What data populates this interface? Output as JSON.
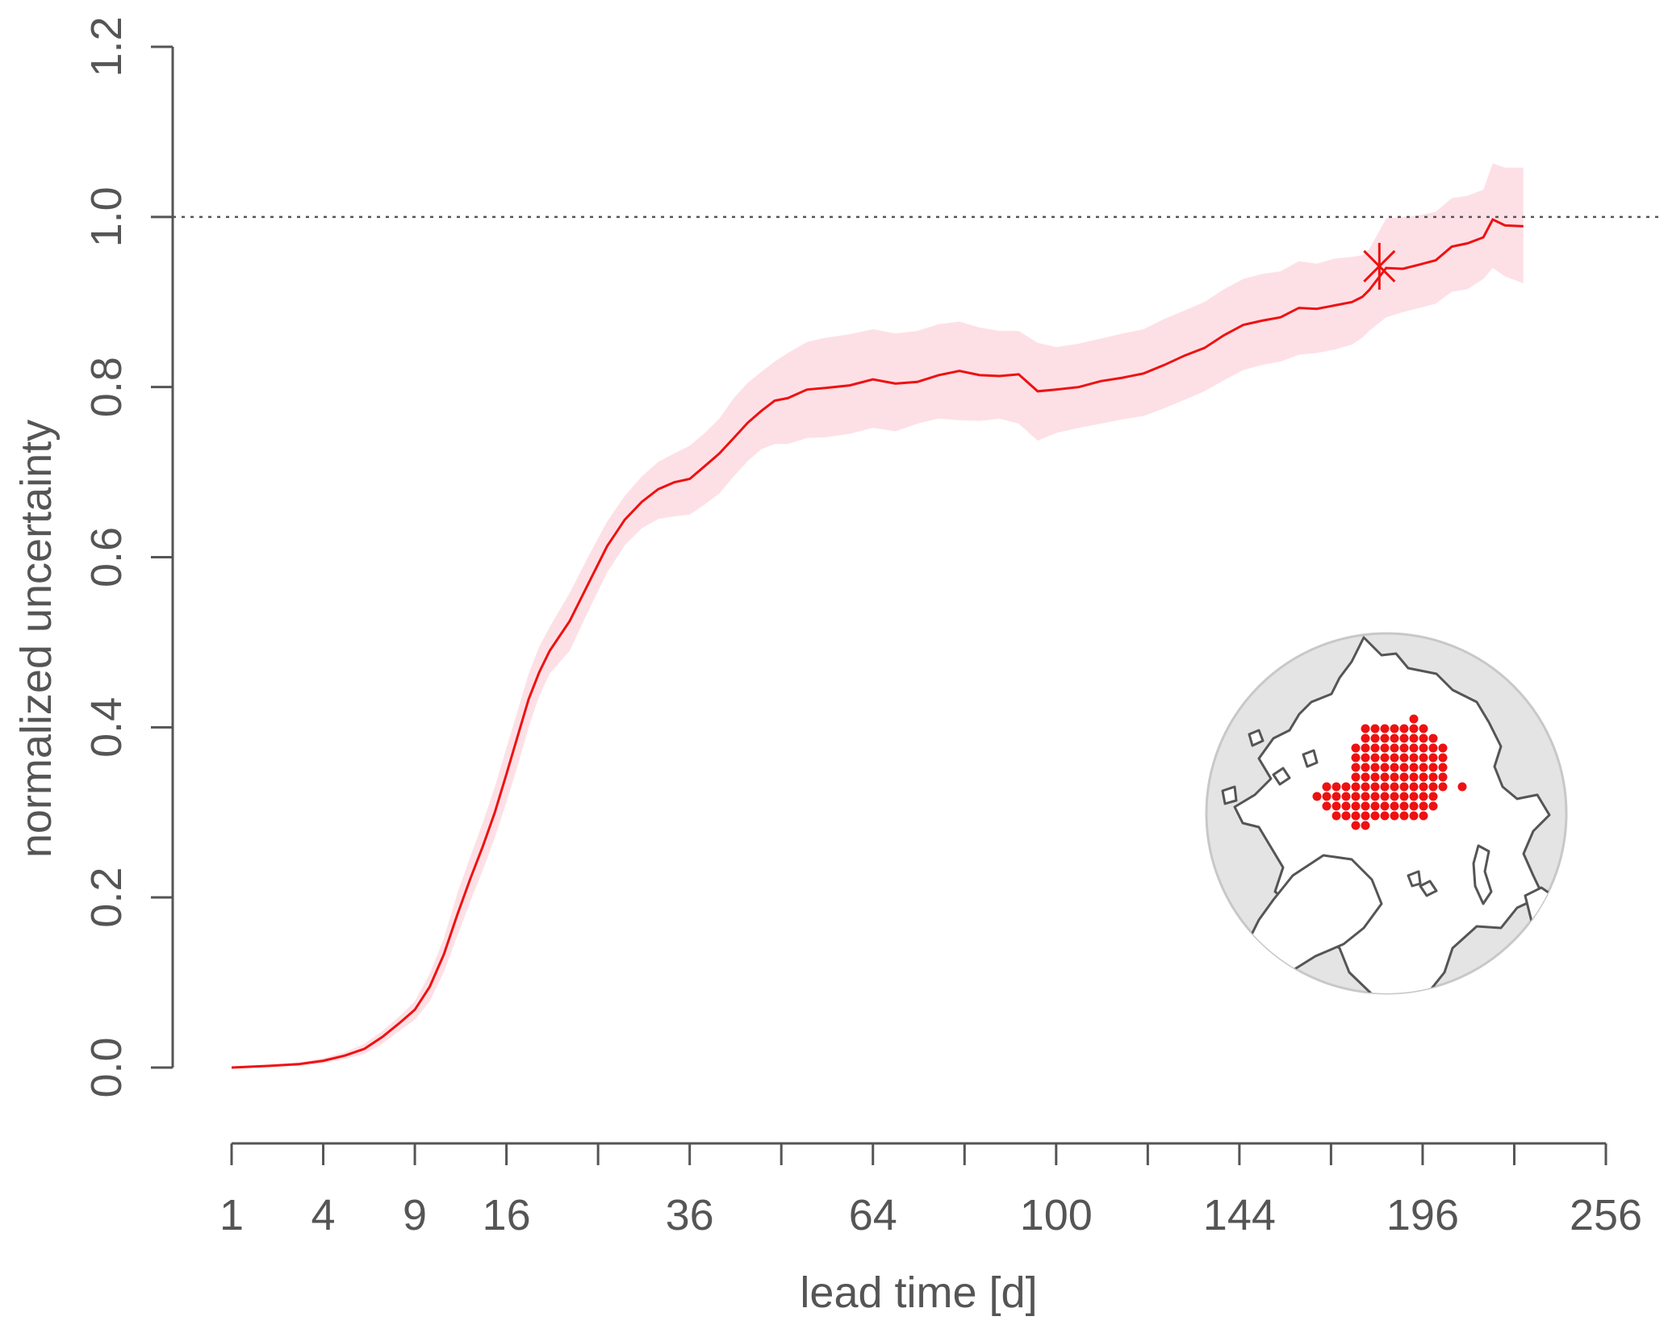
{
  "chart_data": {
    "type": "line",
    "title": "",
    "xlabel": "lead time [d]",
    "ylabel": "normalized uncertainty",
    "x_scale": "sqrt",
    "xlim": [
      1,
      256
    ],
    "ylim": [
      0,
      1.2
    ],
    "x_ticks": [
      1,
      4,
      9,
      16,
      36,
      64,
      100,
      144,
      196,
      256
    ],
    "x_minor_ticks": [
      25,
      49,
      81,
      121,
      169,
      225
    ],
    "y_ticks": [
      "0.0",
      "0.2",
      "0.4",
      "0.6",
      "0.8",
      "1.0",
      "1.2"
    ],
    "reference_line": {
      "y": 1.0,
      "style": "dotted"
    },
    "grid": false,
    "legend": "none",
    "series": [
      {
        "color": "#ee1111",
        "band_color": "#fde0e6",
        "x": [
          1,
          2,
          3,
          4,
          5,
          6,
          7,
          8,
          9,
          10,
          11,
          12,
          13,
          14,
          15,
          16,
          17,
          18,
          19,
          20,
          22,
          24,
          26,
          28,
          30,
          32,
          34,
          36,
          38,
          40,
          42,
          44,
          46,
          48,
          50,
          53,
          56,
          60,
          64,
          68,
          72,
          76,
          80,
          84,
          88,
          92,
          96,
          100,
          105,
          110,
          115,
          120,
          125,
          130,
          135,
          140,
          145,
          150,
          155,
          160,
          165,
          170,
          175,
          178,
          180,
          185,
          190,
          195,
          200,
          205,
          210,
          215,
          218,
          222,
          228
        ],
        "y": [
          0.0,
          0.002,
          0.004,
          0.008,
          0.014,
          0.022,
          0.036,
          0.052,
          0.068,
          0.095,
          0.133,
          0.18,
          0.222,
          0.26,
          0.3,
          0.345,
          0.39,
          0.433,
          0.465,
          0.49,
          0.525,
          0.57,
          0.613,
          0.644,
          0.665,
          0.68,
          0.688,
          0.692,
          0.707,
          0.722,
          0.74,
          0.758,
          0.772,
          0.784,
          0.787,
          0.797,
          0.799,
          0.802,
          0.809,
          0.804,
          0.806,
          0.814,
          0.819,
          0.814,
          0.813,
          0.815,
          0.795,
          0.797,
          0.8,
          0.807,
          0.811,
          0.816,
          0.826,
          0.837,
          0.846,
          0.861,
          0.873,
          0.878,
          0.882,
          0.893,
          0.892,
          0.896,
          0.9,
          0.906,
          0.914,
          0.94,
          0.939,
          0.944,
          0.949,
          0.965,
          0.969,
          0.976,
          0.997,
          0.99,
          0.989
        ],
        "lower": [
          0.0,
          0.001,
          0.002,
          0.005,
          0.01,
          0.016,
          0.028,
          0.043,
          0.056,
          0.078,
          0.112,
          0.155,
          0.195,
          0.232,
          0.27,
          0.312,
          0.355,
          0.4,
          0.437,
          0.463,
          0.49,
          0.538,
          0.582,
          0.614,
          0.634,
          0.645,
          0.648,
          0.65,
          0.662,
          0.675,
          0.695,
          0.713,
          0.727,
          0.733,
          0.733,
          0.74,
          0.741,
          0.745,
          0.752,
          0.748,
          0.757,
          0.763,
          0.761,
          0.76,
          0.763,
          0.757,
          0.737,
          0.746,
          0.752,
          0.757,
          0.762,
          0.766,
          0.775,
          0.785,
          0.795,
          0.808,
          0.82,
          0.826,
          0.83,
          0.838,
          0.84,
          0.844,
          0.85,
          0.858,
          0.866,
          0.882,
          0.888,
          0.893,
          0.898,
          0.912,
          0.915,
          0.927,
          0.94,
          0.93,
          0.922
        ],
        "upper": [
          0.0,
          0.003,
          0.006,
          0.011,
          0.018,
          0.028,
          0.043,
          0.06,
          0.078,
          0.11,
          0.152,
          0.205,
          0.248,
          0.288,
          0.33,
          0.376,
          0.42,
          0.463,
          0.495,
          0.518,
          0.558,
          0.602,
          0.642,
          0.672,
          0.695,
          0.712,
          0.722,
          0.731,
          0.746,
          0.763,
          0.787,
          0.805,
          0.818,
          0.83,
          0.84,
          0.853,
          0.858,
          0.862,
          0.868,
          0.863,
          0.866,
          0.874,
          0.877,
          0.87,
          0.866,
          0.866,
          0.852,
          0.847,
          0.851,
          0.857,
          0.863,
          0.868,
          0.88,
          0.89,
          0.9,
          0.915,
          0.927,
          0.933,
          0.936,
          0.948,
          0.945,
          0.951,
          0.953,
          0.955,
          0.962,
          0.998,
          1.0,
          1.002,
          1.006,
          1.022,
          1.025,
          1.032,
          1.063,
          1.058,
          1.058
        ]
      }
    ],
    "annotations": [
      {
        "type": "asterisk-marker",
        "x": 183,
        "y": 0.942,
        "color": "#ee1111"
      },
      {
        "type": "inset-map",
        "description_hidden": true,
        "position": "bottom-right"
      }
    ]
  }
}
